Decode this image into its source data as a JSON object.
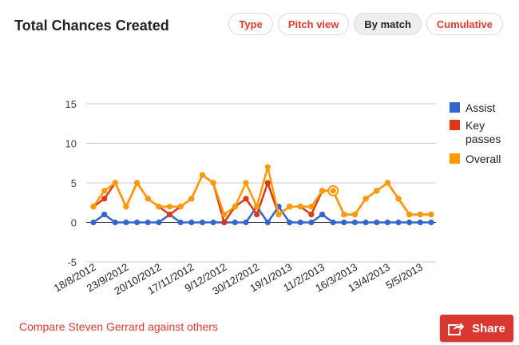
{
  "header": {
    "title": "Total Chances Created",
    "tabs": [
      {
        "label": "Type",
        "active": false
      },
      {
        "label": "Pitch view",
        "active": false
      },
      {
        "label": "By match",
        "active": true
      },
      {
        "label": "Cumulative",
        "active": false
      }
    ]
  },
  "footer": {
    "compare_link": "Compare Steven Gerrard against others",
    "share_label": "Share",
    "share_icon": "share-arrow-icon"
  },
  "colors": {
    "assist": "#3366cc",
    "key_passes": "#dc3912",
    "overall": "#ff9900",
    "accent": "#e03a2f"
  },
  "chart_data": {
    "type": "line",
    "ylim": [
      -5,
      15
    ],
    "yticks": [
      -5,
      0,
      5,
      10,
      15
    ],
    "grid": true,
    "legend_position": "right",
    "xtick_labels": [
      "18/8/2012",
      "23/9/2012",
      "20/10/2012",
      "17/11/2012",
      "9/12/2012",
      "30/12/2012",
      "19/1/2013",
      "11/2/2013",
      "16/3/2013",
      "13/4/2013",
      "5/5/2013"
    ],
    "xtick_indices": [
      0,
      3,
      6,
      9,
      12,
      15,
      18,
      21,
      24,
      27,
      30
    ],
    "highlighted_index": 22,
    "series": [
      {
        "name": "Assist",
        "values": [
          0,
          1,
          0,
          0,
          0,
          0,
          0,
          1,
          0,
          0,
          0,
          0,
          0,
          0,
          0,
          2,
          0,
          2,
          0,
          0,
          0,
          1,
          0,
          0,
          0,
          0,
          0,
          0,
          0,
          0,
          0,
          0
        ]
      },
      {
        "name": "Key passes",
        "values": [
          2,
          3,
          5,
          2,
          5,
          3,
          2,
          1,
          2,
          3,
          6,
          5,
          0,
          2,
          3,
          1,
          5,
          1,
          2,
          2,
          1,
          4,
          4,
          1,
          1,
          3,
          4,
          5,
          3,
          1,
          1,
          1
        ]
      },
      {
        "name": "Overall",
        "values": [
          2,
          4,
          5,
          2,
          5,
          3,
          2,
          2,
          2,
          3,
          6,
          5,
          1,
          2,
          5,
          2,
          7,
          1,
          2,
          2,
          2,
          4,
          4,
          1,
          1,
          3,
          4,
          5,
          3,
          1,
          1,
          1
        ]
      }
    ]
  }
}
